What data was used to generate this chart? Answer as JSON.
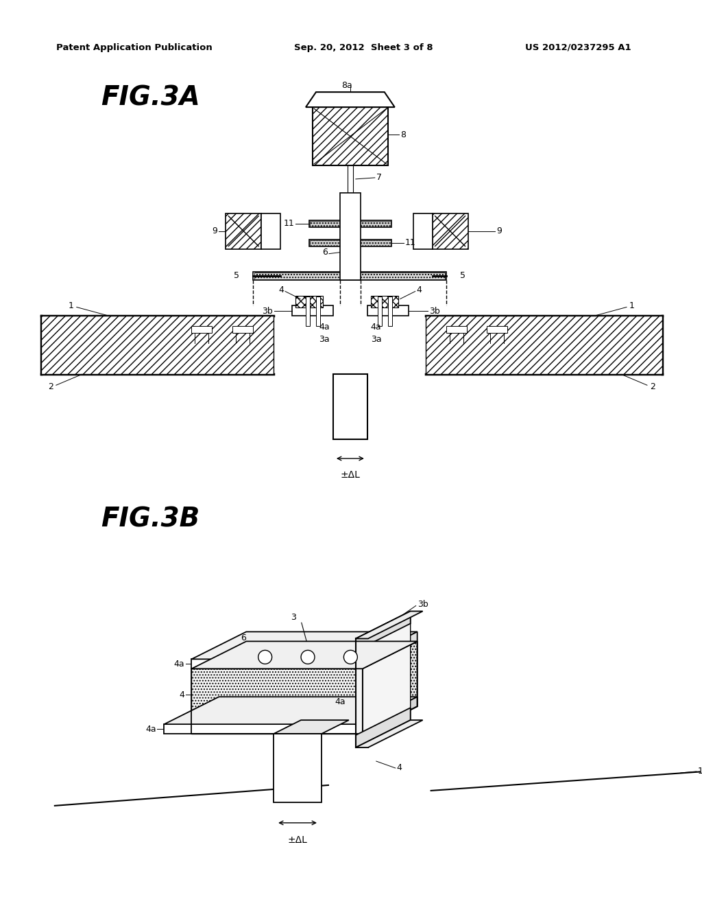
{
  "bg_color": "#ffffff",
  "header_left": "Patent Application Publication",
  "header_center": "Sep. 20, 2012  Sheet 3 of 8",
  "header_right": "US 2012/0237295 A1",
  "fig3a_label": "FIG.3A",
  "fig3b_label": "FIG.3B"
}
